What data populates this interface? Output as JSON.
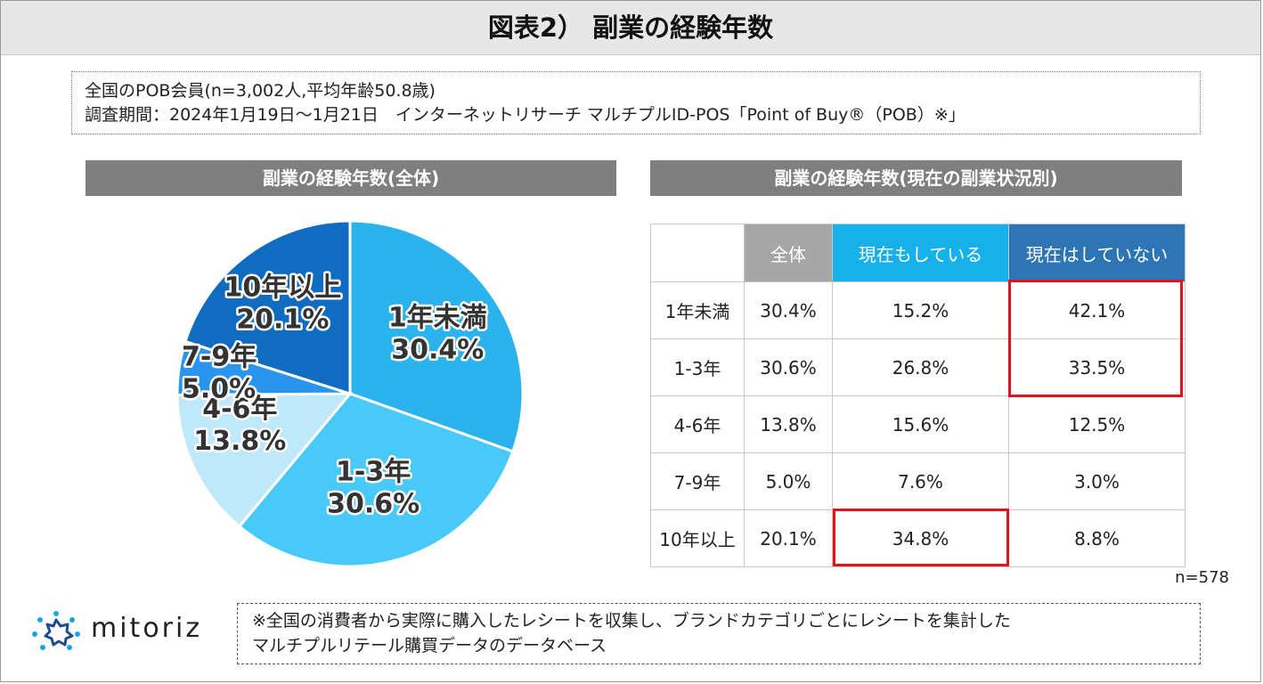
{
  "title": "図表2） 副業の経験年数",
  "info": {
    "line1": "全国のPOB会員(n=3,002人,平均年齢50.8歳)",
    "line2": "調査期間：2024年1月19日～1月21日　インターネットリサーチ マルチプルID-POS「Point of Buy®（POB）※」"
  },
  "pie_header": "副業の経験年数(全体)",
  "table_header": "副業の経験年数(現在の副業状況別)",
  "chart_data": [
    {
      "type": "pie",
      "categories": [
        "1年未満",
        "1-3年",
        "4-6年",
        "7-9年",
        "10年以上"
      ],
      "values": [
        30.4,
        30.6,
        13.8,
        5.0,
        20.1
      ],
      "labels": [
        "30.4%",
        "30.6%",
        "13.8%",
        "5.0%",
        "20.1%"
      ],
      "colors": [
        "#2bb3ee",
        "#48c9f8",
        "#bfe8fb",
        "#2a95ee",
        "#0f6cc0"
      ]
    },
    {
      "type": "table",
      "columns": [
        "全体",
        "現在もしている",
        "現在はしていない"
      ],
      "column_colors": [
        "#a6a6a6",
        "#16b0ea",
        "#2e75b6"
      ],
      "rows": [
        {
          "label": "1年未満",
          "values": [
            "30.4%",
            "15.2%",
            "42.1%"
          ]
        },
        {
          "label": "1-3年",
          "values": [
            "30.6%",
            "26.8%",
            "33.5%"
          ]
        },
        {
          "label": "4-6年",
          "values": [
            "13.8%",
            "15.6%",
            "12.5%"
          ]
        },
        {
          "label": "7-9年",
          "values": [
            "5.0%",
            "7.6%",
            "3.0%"
          ]
        },
        {
          "label": "10年以上",
          "values": [
            "20.1%",
            "34.8%",
            "8.8%"
          ]
        }
      ],
      "highlight_color": "#e0141e"
    }
  ],
  "n_label": "n=578",
  "logo": {
    "text": "mitoriz",
    "icon": "starburst-logo-icon"
  },
  "note": {
    "line1": "※全国の消費者から実際に購入したレシートを収集し、ブランドカテゴリごとにレシートを集計した",
    "line2": "マルチプルリテール購買データのデータベース"
  }
}
